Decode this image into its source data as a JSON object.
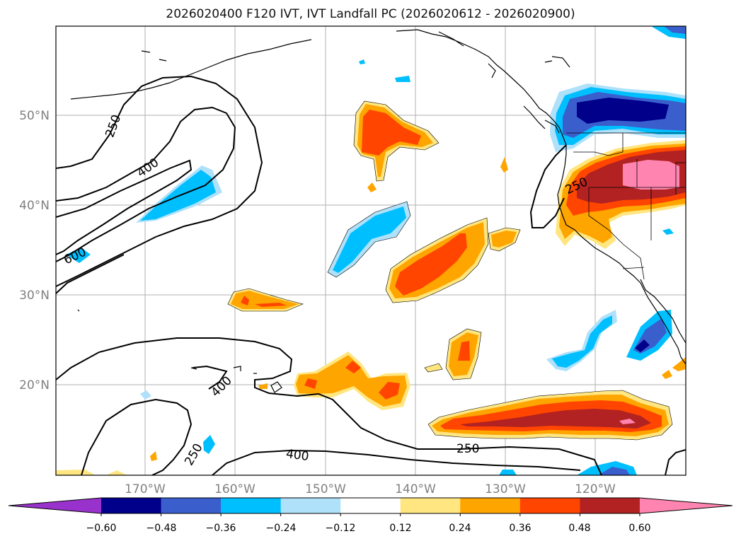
{
  "title": "2026020400 F120 IVT, IVT Landfall PC (2026020612 - 2026020900)",
  "latitude_labels": [
    "50°N",
    "40°N",
    "30°N",
    "20°N"
  ],
  "longitude_labels": [
    "170°W",
    "160°W",
    "150°W",
    "140°W",
    "130°W",
    "120°W"
  ],
  "contour_labels": {
    "c250_nw": "250",
    "c400_nw": "400",
    "c600": "600",
    "c400_mid": "400",
    "c250_sw": "250",
    "c400_s": "400",
    "c250_s": "250",
    "c250_ca": "250"
  },
  "colorbar": {
    "ticks": [
      "−0.60",
      "−0.48",
      "−0.36",
      "−0.24",
      "−0.12",
      "0.12",
      "0.24",
      "0.36",
      "0.48",
      "0.60"
    ],
    "colors": [
      "#9932cc",
      "#00008b",
      "#3a5fcd",
      "#00bfff",
      "#afe1fa",
      "#ffffff",
      "#ffe680",
      "#ffa500",
      "#ff4500",
      "#b22222",
      "#ff85b0"
    ]
  },
  "colors": {
    "purple": "#9932cc",
    "navy": "#00008b",
    "royal": "#3a5fcd",
    "sky": "#00bfff",
    "pale_blue": "#afe1fa",
    "pale_yellow": "#ffe680",
    "orange": "#ffa500",
    "orange_red": "#ff4500",
    "firebrick": "#b22222",
    "pink": "#ff85b0"
  }
}
